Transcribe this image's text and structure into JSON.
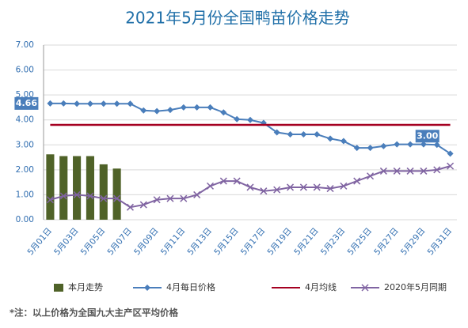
{
  "chart_data": {
    "type": "bar",
    "title": "2021年5月份全国鸭苗价格走势",
    "categories": [
      "5月01日",
      null,
      "5月03日",
      null,
      "5月05日",
      null,
      "5月07日",
      null,
      "5月09日",
      null,
      "5月11日",
      null,
      "5月13日",
      null,
      "5月15日",
      null,
      "5月17日",
      null,
      "5月19日",
      null,
      "5月21日",
      null,
      "5月23日",
      null,
      "5月25日",
      null,
      "5月27日",
      null,
      "5月29日",
      null,
      "5月31日"
    ],
    "series": [
      {
        "name": "本月走势",
        "type": "bar",
        "color": "#4f6228",
        "values": [
          2.62,
          2.55,
          2.55,
          2.55,
          2.22,
          2.05,
          null,
          null,
          null,
          null,
          null,
          null,
          null,
          null,
          null,
          null,
          null,
          null,
          null,
          null,
          null,
          null,
          null,
          null,
          null,
          null,
          null,
          null,
          null,
          null,
          null
        ]
      },
      {
        "name": "4月每日价格",
        "type": "line",
        "marker": "diamond",
        "color": "#4a7ebb",
        "values": [
          4.66,
          4.66,
          4.65,
          4.65,
          4.65,
          4.65,
          4.65,
          4.38,
          4.35,
          4.4,
          4.5,
          4.5,
          4.5,
          4.3,
          4.03,
          4.0,
          3.88,
          3.5,
          3.42,
          3.42,
          3.42,
          3.25,
          3.15,
          2.88,
          2.88,
          2.95,
          3.02,
          3.02,
          3.02,
          3.0,
          2.65
        ],
        "value_labels": [
          "4.66",
          null,
          null,
          null,
          null,
          null,
          null,
          null,
          null,
          null,
          null,
          null,
          null,
          null,
          null,
          null,
          null,
          null,
          null,
          null,
          null,
          null,
          null,
          null,
          null,
          null,
          null,
          null,
          null,
          "3.00",
          null
        ]
      },
      {
        "name": "4月均线",
        "type": "line",
        "marker": "none",
        "color": "#a50021",
        "values": [
          3.8,
          3.8,
          3.8,
          3.8,
          3.8,
          3.8,
          3.8,
          3.8,
          3.8,
          3.8,
          3.8,
          3.8,
          3.8,
          3.8,
          3.8,
          3.8,
          3.8,
          3.8,
          3.8,
          3.8,
          3.8,
          3.8,
          3.8,
          3.8,
          3.8,
          3.8,
          3.8,
          3.8,
          3.8,
          3.8,
          3.8
        ]
      },
      {
        "name": "2020年5月同期",
        "type": "line",
        "marker": "x",
        "color": "#8064a2",
        "values": [
          0.8,
          0.95,
          1.0,
          0.95,
          0.85,
          0.85,
          0.5,
          0.6,
          0.8,
          0.85,
          0.85,
          1.0,
          1.35,
          1.55,
          1.55,
          1.3,
          1.15,
          1.2,
          1.3,
          1.3,
          1.3,
          1.25,
          1.35,
          1.55,
          1.75,
          1.95,
          1.95,
          1.95,
          1.95,
          2.0,
          2.15
        ]
      }
    ],
    "ylim": [
      0,
      7
    ],
    "yticks": [
      {
        "value": 0,
        "label": "0.00"
      },
      {
        "value": 1,
        "label": "1.00"
      },
      {
        "value": 2,
        "label": "2.00"
      },
      {
        "value": 3,
        "label": "3.00"
      },
      {
        "value": 4,
        "label": "4.00"
      },
      {
        "value": 5,
        "label": "5.00"
      },
      {
        "value": 6,
        "label": "6.00"
      },
      {
        "value": 7,
        "label": "7.00"
      }
    ],
    "grid": true,
    "legend": "bottom",
    "footnote": "*注：以上价格为全国九大主产区平均价格"
  }
}
